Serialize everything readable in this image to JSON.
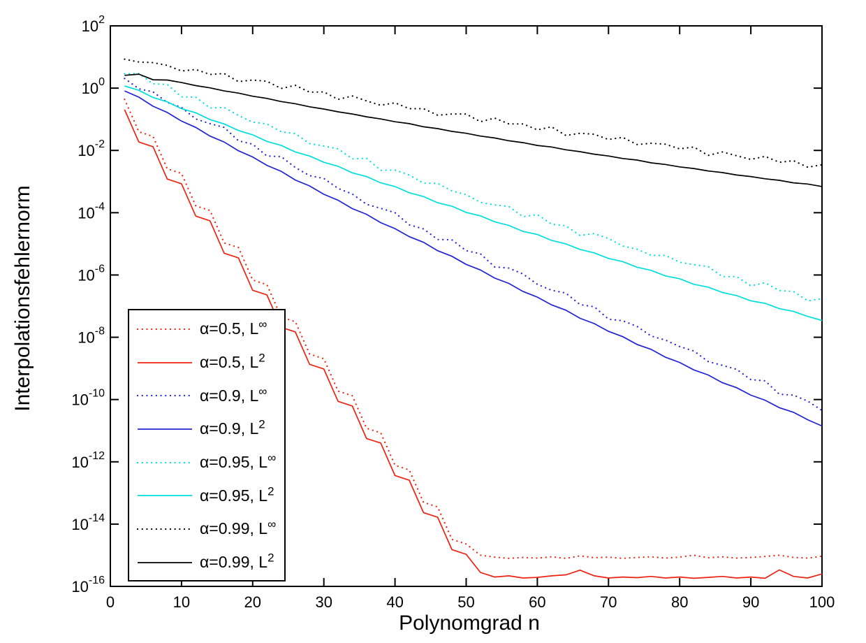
{
  "figure": {
    "background": "#ffffff",
    "text_color": "#000000"
  },
  "chart_data": {
    "type": "line",
    "title": "",
    "xlabel": "Polynomgrad n",
    "ylabel": "Interpolationsfehlernorm",
    "x_scale": "linear",
    "y_scale": "log10",
    "xlim": [
      0,
      100
    ],
    "ylim_exponents": [
      2,
      -16
    ],
    "x_ticks": [
      0,
      10,
      20,
      30,
      40,
      50,
      60,
      70,
      80,
      90,
      100
    ],
    "y_tick_exponents": [
      2,
      0,
      -2,
      -4,
      -6,
      -8,
      -10,
      -12,
      -14,
      -16
    ],
    "y_tick_base": "10",
    "grid": false,
    "legend_position": "inside-middle-left",
    "n": [
      2,
      4,
      6,
      8,
      10,
      12,
      14,
      16,
      18,
      20,
      22,
      24,
      26,
      28,
      30,
      32,
      34,
      36,
      38,
      40,
      42,
      44,
      46,
      48,
      50,
      52,
      54,
      56,
      58,
      60,
      62,
      64,
      66,
      68,
      70,
      72,
      74,
      76,
      78,
      80,
      82,
      84,
      86,
      88,
      90,
      92,
      94,
      96,
      98,
      100
    ],
    "series": [
      {
        "key": "a05_Linf",
        "label": "α=0.5, L∞",
        "label_prefix": "α=0.5, L",
        "label_sup": "∞",
        "style": "dotted",
        "color": "#ee2211",
        "log10_values": [
          -0.36,
          -1.4,
          -1.55,
          -2.59,
          -2.74,
          -3.78,
          -3.93,
          -4.97,
          -5.12,
          -6.16,
          -6.31,
          -7.35,
          -7.5,
          -8.54,
          -8.69,
          -9.73,
          -9.88,
          -10.92,
          -11.07,
          -12.11,
          -12.26,
          -13.3,
          -13.45,
          -14.49,
          -14.64,
          -15.0,
          -15.06,
          -15.1,
          -15.07,
          -15.09,
          -15.05,
          -15.1,
          -15.02,
          -15.08,
          -15.06,
          -15.1,
          -15.07,
          -15.05,
          -15.09,
          -15.06,
          -15.0,
          -15.08,
          -15.05,
          -15.09,
          -15.07,
          -15.04,
          -15.0,
          -15.07,
          -15.09,
          -15.03
        ]
      },
      {
        "key": "a05_L2",
        "label": "α=0.5, L2",
        "label_prefix": "α=0.5, L",
        "label_sup": "2",
        "style": "solid",
        "color": "#ee2211",
        "log10_values": [
          -0.69,
          -1.73,
          -1.88,
          -2.92,
          -3.07,
          -4.11,
          -4.26,
          -5.3,
          -5.45,
          -6.49,
          -6.64,
          -7.68,
          -7.83,
          -8.87,
          -9.02,
          -10.06,
          -10.21,
          -11.25,
          -11.4,
          -12.44,
          -12.59,
          -13.63,
          -13.78,
          -14.82,
          -14.97,
          -15.55,
          -15.7,
          -15.66,
          -15.73,
          -15.71,
          -15.66,
          -15.63,
          -15.48,
          -15.66,
          -15.73,
          -15.7,
          -15.72,
          -15.68,
          -15.73,
          -15.7,
          -15.74,
          -15.71,
          -15.68,
          -15.73,
          -15.7,
          -15.74,
          -15.47,
          -15.68,
          -15.73,
          -15.6
        ]
      },
      {
        "key": "a09_Linf",
        "label": "α=0.9, L∞",
        "label_prefix": "α=0.9, L",
        "label_sup": "∞",
        "style": "dotted",
        "color": "#2222d6",
        "log10_values": [
          0.31,
          -0.02,
          -0.12,
          -0.46,
          -0.62,
          -0.99,
          -1.14,
          -1.26,
          -1.69,
          -1.8,
          -2.18,
          -2.2,
          -2.55,
          -2.81,
          -2.9,
          -3.22,
          -3.4,
          -3.73,
          -3.86,
          -4.0,
          -4.39,
          -4.52,
          -4.86,
          -4.87,
          -5.22,
          -5.32,
          -5.74,
          -5.78,
          -5.97,
          -6.3,
          -6.49,
          -6.58,
          -6.95,
          -7.02,
          -7.42,
          -7.47,
          -7.65,
          -7.96,
          -8.09,
          -8.3,
          -8.44,
          -8.78,
          -8.9,
          -9.03,
          -9.36,
          -9.4,
          -9.83,
          -9.86,
          -10.05,
          -10.35
        ]
      },
      {
        "key": "a09_L2",
        "label": "α=0.9, L2",
        "label_prefix": "α=0.9, L",
        "label_sup": "2",
        "style": "solid",
        "color": "#2222d6",
        "log10_values": [
          -0.09,
          -0.29,
          -0.58,
          -0.78,
          -1.06,
          -1.26,
          -1.54,
          -1.73,
          -2.01,
          -2.21,
          -2.48,
          -2.67,
          -2.95,
          -3.14,
          -3.41,
          -3.6,
          -3.87,
          -4.05,
          -4.32,
          -4.51,
          -4.77,
          -4.95,
          -5.22,
          -5.4,
          -5.66,
          -5.84,
          -6.1,
          -6.27,
          -6.53,
          -6.71,
          -6.96,
          -7.13,
          -7.39,
          -7.56,
          -7.81,
          -7.98,
          -8.23,
          -8.39,
          -8.64,
          -8.81,
          -9.05,
          -9.21,
          -9.46,
          -9.62,
          -9.86,
          -10.02,
          -10.26,
          -10.41,
          -10.65,
          -10.85
        ]
      },
      {
        "key": "a095_Linf",
        "label": "α=0.95, L∞",
        "label_prefix": "α=0.95, L",
        "label_sup": "∞",
        "style": "dotted",
        "color": "#00dede",
        "log10_values": [
          0.46,
          0.47,
          0.14,
          0.12,
          -0.28,
          -0.29,
          -0.64,
          -0.62,
          -0.88,
          -1.09,
          -1.15,
          -1.4,
          -1.46,
          -1.78,
          -1.86,
          -1.95,
          -2.27,
          -2.25,
          -2.64,
          -2.63,
          -2.79,
          -3.05,
          -3.06,
          -3.3,
          -3.42,
          -3.67,
          -3.75,
          -3.8,
          -4.13,
          -4.06,
          -4.37,
          -4.42,
          -4.73,
          -4.67,
          -4.83,
          -5.07,
          -5.17,
          -5.37,
          -5.37,
          -5.59,
          -5.67,
          -5.73,
          -6.05,
          -6.05,
          -6.35,
          -6.25,
          -6.5,
          -6.53,
          -6.83,
          -6.76
        ]
      },
      {
        "key": "a095_L2",
        "label": "α=0.95, L2",
        "label_prefix": "α=0.95, L",
        "label_sup": "2",
        "style": "solid",
        "color": "#00dede",
        "log10_values": [
          0.07,
          -0.07,
          -0.3,
          -0.44,
          -0.66,
          -0.79,
          -1.01,
          -1.15,
          -1.36,
          -1.5,
          -1.71,
          -1.84,
          -2.05,
          -2.18,
          -2.38,
          -2.51,
          -2.72,
          -2.84,
          -3.04,
          -3.16,
          -3.36,
          -3.48,
          -3.68,
          -3.79,
          -3.99,
          -4.1,
          -4.29,
          -4.41,
          -4.6,
          -4.7,
          -4.89,
          -5.0,
          -5.18,
          -5.29,
          -5.47,
          -5.57,
          -5.75,
          -5.85,
          -6.03,
          -6.12,
          -6.3,
          -6.39,
          -6.56,
          -6.66,
          -6.83,
          -6.91,
          -7.08,
          -7.17,
          -7.33,
          -7.46
        ]
      },
      {
        "key": "a099_Linf",
        "label": "α=0.99, L∞",
        "label_prefix": "α=0.99, L",
        "label_sup": "∞",
        "style": "dotted",
        "color": "#000000",
        "log10_values": [
          0.93,
          0.84,
          0.82,
          0.73,
          0.55,
          0.6,
          0.44,
          0.47,
          0.21,
          0.26,
          0.22,
          -0.01,
          0.09,
          -0.13,
          -0.12,
          -0.36,
          -0.25,
          -0.41,
          -0.55,
          -0.47,
          -0.66,
          -0.66,
          -0.87,
          -0.83,
          -0.83,
          -1.08,
          -0.96,
          -1.15,
          -1.15,
          -1.34,
          -1.24,
          -1.52,
          -1.45,
          -1.48,
          -1.65,
          -1.58,
          -1.81,
          -1.77,
          -1.8,
          -1.95,
          -1.89,
          -2.16,
          -2.05,
          -2.17,
          -2.29,
          -2.19,
          -2.38,
          -2.33,
          -2.54,
          -2.46
        ]
      },
      {
        "key": "a099_L2",
        "label": "α=0.99, L2",
        "label_prefix": "α=0.99, L",
        "label_sup": "2",
        "style": "solid",
        "color": "#000000",
        "log10_values": [
          0.41,
          0.45,
          0.27,
          0.26,
          0.18,
          0.08,
          0.01,
          -0.09,
          -0.16,
          -0.26,
          -0.33,
          -0.43,
          -0.5,
          -0.6,
          -0.67,
          -0.76,
          -0.83,
          -0.92,
          -0.99,
          -1.08,
          -1.14,
          -1.24,
          -1.3,
          -1.39,
          -1.45,
          -1.54,
          -1.6,
          -1.69,
          -1.75,
          -1.84,
          -1.89,
          -1.98,
          -2.04,
          -2.12,
          -2.18,
          -2.26,
          -2.31,
          -2.4,
          -2.45,
          -2.53,
          -2.58,
          -2.66,
          -2.71,
          -2.79,
          -2.84,
          -2.91,
          -2.96,
          -3.04,
          -3.08,
          -3.16
        ]
      }
    ]
  }
}
